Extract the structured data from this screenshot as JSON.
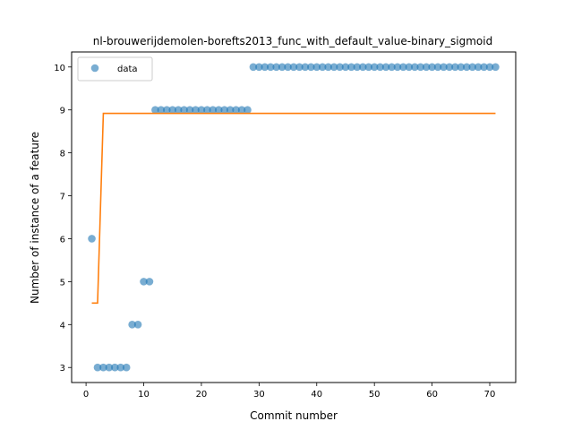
{
  "chart_data": {
    "type": "scatter",
    "title": "nl-brouwerijdemolen-borefts2013_func_with_default_value-binary_sigmoid",
    "xlabel": "Commit number",
    "ylabel": "Number of instance of a feature",
    "xlim": [
      -2.5,
      74.5
    ],
    "ylim": [
      2.65,
      10.35
    ],
    "xticks": [
      0,
      10,
      20,
      30,
      40,
      50,
      60,
      70
    ],
    "yticks": [
      3,
      4,
      5,
      6,
      7,
      8,
      9,
      10
    ],
    "grid": false,
    "legend_position": "top-left",
    "series": [
      {
        "name": "data",
        "kind": "scatter",
        "color": "#1f77b4",
        "x": [
          1,
          2,
          3,
          4,
          5,
          6,
          7,
          8,
          9,
          10,
          11,
          12,
          13,
          14,
          15,
          16,
          17,
          18,
          19,
          20,
          21,
          22,
          23,
          24,
          25,
          26,
          27,
          28,
          29,
          30,
          31,
          32,
          33,
          34,
          35,
          36,
          37,
          38,
          39,
          40,
          41,
          42,
          43,
          44,
          45,
          46,
          47,
          48,
          49,
          50,
          51,
          52,
          53,
          54,
          55,
          56,
          57,
          58,
          59,
          60,
          61,
          62,
          63,
          64,
          65,
          66,
          67,
          68,
          69,
          70,
          71
        ],
        "y": [
          6,
          3,
          3,
          3,
          3,
          3,
          3,
          4,
          4,
          5,
          5,
          9,
          9,
          9,
          9,
          9,
          9,
          9,
          9,
          9,
          9,
          9,
          9,
          9,
          9,
          9,
          9,
          9,
          10,
          10,
          10,
          10,
          10,
          10,
          10,
          10,
          10,
          10,
          10,
          10,
          10,
          10,
          10,
          10,
          10,
          10,
          10,
          10,
          10,
          10,
          10,
          10,
          10,
          10,
          10,
          10,
          10,
          10,
          10,
          10,
          10,
          10,
          10,
          10,
          10,
          10,
          10,
          10,
          10,
          10,
          10
        ]
      },
      {
        "kind": "line",
        "color": "#ff7f0e",
        "x": [
          1,
          2,
          3,
          71
        ],
        "y": [
          4.5,
          4.5,
          8.92,
          8.92
        ]
      }
    ]
  }
}
